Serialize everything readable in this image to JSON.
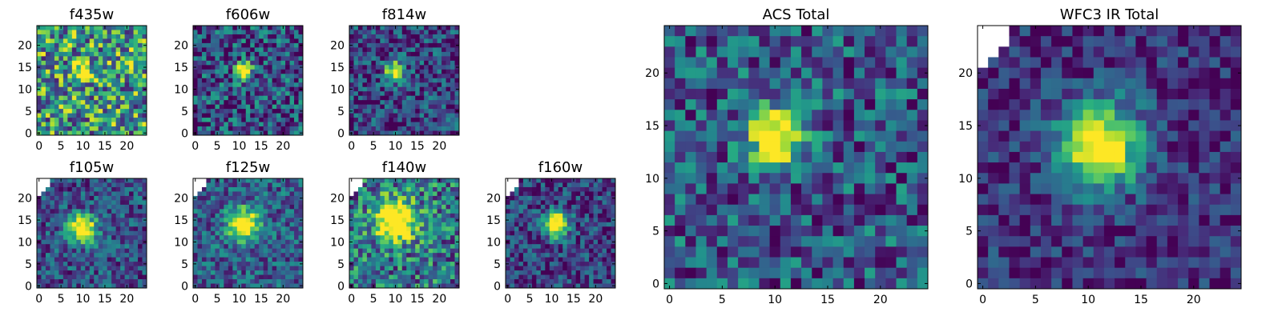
{
  "chart_data": [
    {
      "type": "heatmap",
      "title": "f435w",
      "x_ticks": [
        "0",
        "5",
        "10",
        "15",
        "20"
      ],
      "y_ticks": [
        "0",
        "5",
        "10",
        "15",
        "20"
      ],
      "grid_size": [
        25,
        25
      ],
      "colormap": "viridis",
      "source_peak": [
        10,
        14
      ],
      "peak_radius": 1.2,
      "peak_level": 0.9,
      "noise_base": 0.55,
      "noise_amp": 0.45,
      "blank_corner": false,
      "seed": 11
    },
    {
      "type": "heatmap",
      "title": "f606w",
      "x_ticks": [
        "0",
        "5",
        "10",
        "15",
        "20"
      ],
      "y_ticks": [
        "0",
        "5",
        "10",
        "15",
        "20"
      ],
      "grid_size": [
        25,
        25
      ],
      "colormap": "viridis",
      "source_peak": [
        11,
        14
      ],
      "peak_radius": 1.4,
      "peak_level": 1.0,
      "noise_base": 0.25,
      "noise_amp": 0.35,
      "blank_corner": false,
      "seed": 23
    },
    {
      "type": "heatmap",
      "title": "f814w",
      "x_ticks": [
        "0",
        "5",
        "10",
        "15",
        "20"
      ],
      "y_ticks": [
        "0",
        "5",
        "10",
        "15",
        "20"
      ],
      "grid_size": [
        25,
        25
      ],
      "colormap": "viridis",
      "source_peak": [
        10,
        14
      ],
      "peak_radius": 1.5,
      "peak_level": 1.0,
      "noise_base": 0.2,
      "noise_amp": 0.3,
      "blank_corner": false,
      "seed": 37
    },
    {
      "type": "heatmap",
      "title": "f105w",
      "x_ticks": [
        "0",
        "5",
        "10",
        "15",
        "20"
      ],
      "y_ticks": [
        "0",
        "5",
        "10",
        "15",
        "20"
      ],
      "grid_size": [
        25,
        25
      ],
      "colormap": "viridis",
      "source_peak": [
        10,
        13
      ],
      "peak_radius": 2.2,
      "peak_level": 1.0,
      "noise_base": 0.25,
      "noise_amp": 0.25,
      "blank_corner": true,
      "seed": 41
    },
    {
      "type": "heatmap",
      "title": "f125w",
      "x_ticks": [
        "0",
        "5",
        "10",
        "15",
        "20"
      ],
      "y_ticks": [
        "0",
        "5",
        "10",
        "15",
        "20"
      ],
      "grid_size": [
        25,
        25
      ],
      "colormap": "viridis",
      "source_peak": [
        11,
        14
      ],
      "peak_radius": 2.4,
      "peak_level": 1.0,
      "noise_base": 0.3,
      "noise_amp": 0.25,
      "blank_corner": true,
      "seed": 53
    },
    {
      "type": "heatmap",
      "title": "f140w",
      "x_ticks": [
        "0",
        "5",
        "10",
        "15",
        "20"
      ],
      "y_ticks": [
        "0",
        "5",
        "10",
        "15",
        "20"
      ],
      "grid_size": [
        25,
        25
      ],
      "colormap": "viridis",
      "source_peak": [
        10,
        15
      ],
      "peak_radius": 3.2,
      "peak_level": 1.0,
      "noise_base": 0.4,
      "noise_amp": 0.35,
      "blank_corner": true,
      "seed": 67
    },
    {
      "type": "heatmap",
      "title": "f160w",
      "x_ticks": [
        "0",
        "5",
        "10",
        "15",
        "20"
      ],
      "y_ticks": [
        "0",
        "5",
        "10",
        "15",
        "20"
      ],
      "grid_size": [
        25,
        25
      ],
      "colormap": "viridis",
      "source_peak": [
        11,
        14
      ],
      "peak_radius": 2.0,
      "peak_level": 1.0,
      "noise_base": 0.2,
      "noise_amp": 0.25,
      "blank_corner": true,
      "seed": 79
    },
    {
      "type": "heatmap",
      "title": "ACS Total",
      "x_ticks": [
        "0",
        "5",
        "10",
        "15",
        "20"
      ],
      "y_ticks": [
        "0",
        "5",
        "10",
        "15",
        "20"
      ],
      "grid_size": [
        25,
        25
      ],
      "colormap": "viridis",
      "source_peak": [
        10,
        14
      ],
      "peak_radius": 1.8,
      "peak_level": 1.0,
      "noise_base": 0.28,
      "noise_amp": 0.3,
      "blank_corner": false,
      "seed": 97
    },
    {
      "type": "heatmap",
      "title": "WFC3 IR Total",
      "x_ticks": [
        "0",
        "5",
        "10",
        "15",
        "20"
      ],
      "y_ticks": [
        "0",
        "5",
        "10",
        "15",
        "20"
      ],
      "grid_size": [
        25,
        25
      ],
      "colormap": "viridis",
      "source_peak": [
        11,
        13
      ],
      "peak_radius": 2.8,
      "peak_level": 1.0,
      "noise_base": 0.15,
      "noise_amp": 0.2,
      "blank_corner": true,
      "seed": 131
    }
  ]
}
